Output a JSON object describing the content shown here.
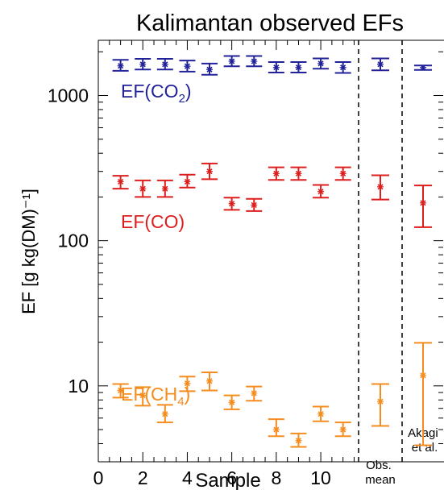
{
  "chart_data": {
    "type": "scatter",
    "title": "Kalimantan observed EFs",
    "xlabel": "Sample",
    "ylabel": "EF [g kg(DM)⁻¹]",
    "yscale": "log",
    "ylim": [
      3,
      2400
    ],
    "xlim": [
      0,
      11.7
    ],
    "xticks": [
      0,
      2,
      4,
      6,
      8,
      10
    ],
    "yticks": [
      10,
      100,
      1000
    ],
    "grid": false,
    "columns": [
      "Obs. mean",
      "Akagi et al."
    ],
    "series": [
      {
        "name": "EF(CO₂)",
        "label_parts": {
          "pre": "EF(CO",
          "sub": "2",
          "post": ")"
        },
        "color": "#22229a",
        "samples": [
          {
            "x": 1,
            "y": 1600,
            "lo": 1480,
            "hi": 1760
          },
          {
            "x": 2,
            "y": 1640,
            "lo": 1510,
            "hi": 1790
          },
          {
            "x": 3,
            "y": 1640,
            "lo": 1510,
            "hi": 1790
          },
          {
            "x": 4,
            "y": 1590,
            "lo": 1460,
            "hi": 1740
          },
          {
            "x": 5,
            "y": 1510,
            "lo": 1390,
            "hi": 1660
          },
          {
            "x": 6,
            "y": 1720,
            "lo": 1590,
            "hi": 1870
          },
          {
            "x": 7,
            "y": 1720,
            "lo": 1590,
            "hi": 1870
          },
          {
            "x": 8,
            "y": 1560,
            "lo": 1440,
            "hi": 1700
          },
          {
            "x": 9,
            "y": 1560,
            "lo": 1440,
            "hi": 1700
          },
          {
            "x": 10,
            "y": 1660,
            "lo": 1530,
            "hi": 1800
          },
          {
            "x": 11,
            "y": 1560,
            "lo": 1430,
            "hi": 1700
          }
        ],
        "obs_mean": {
          "y": 1640,
          "lo": 1490,
          "hi": 1800
        },
        "akagi": {
          "y": 1560,
          "lo": 1500,
          "hi": 1610
        }
      },
      {
        "name": "EF(CO)",
        "label_parts": {
          "pre": "EF(CO)",
          "sub": "",
          "post": ""
        },
        "color": "#dd1e1e",
        "samples": [
          {
            "x": 1,
            "y": 255,
            "lo": 228,
            "hi": 280
          },
          {
            "x": 2,
            "y": 228,
            "lo": 200,
            "hi": 260
          },
          {
            "x": 3,
            "y": 228,
            "lo": 200,
            "hi": 260
          },
          {
            "x": 4,
            "y": 255,
            "lo": 232,
            "hi": 285
          },
          {
            "x": 5,
            "y": 300,
            "lo": 265,
            "hi": 340
          },
          {
            "x": 6,
            "y": 180,
            "lo": 163,
            "hi": 198
          },
          {
            "x": 7,
            "y": 176,
            "lo": 160,
            "hi": 194
          },
          {
            "x": 8,
            "y": 290,
            "lo": 262,
            "hi": 320
          },
          {
            "x": 9,
            "y": 290,
            "lo": 262,
            "hi": 320
          },
          {
            "x": 10,
            "y": 218,
            "lo": 198,
            "hi": 242
          },
          {
            "x": 11,
            "y": 290,
            "lo": 262,
            "hi": 320
          }
        ],
        "obs_mean": {
          "y": 235,
          "lo": 192,
          "hi": 282
        },
        "akagi": {
          "y": 182,
          "lo": 124,
          "hi": 240
        }
      },
      {
        "name": "EF(CH₄)",
        "label_parts": {
          "pre": "EF(CH",
          "sub": "4",
          "post": ")"
        },
        "color": "#f58c1e",
        "samples": [
          {
            "x": 1,
            "y": 9.3,
            "lo": 8.3,
            "hi": 10.3
          },
          {
            "x": 2,
            "y": 8.6,
            "lo": 7.3,
            "hi": 9.8
          },
          {
            "x": 3,
            "y": 6.4,
            "lo": 5.6,
            "hi": 7.4
          },
          {
            "x": 4,
            "y": 10.4,
            "lo": 9.2,
            "hi": 11.6
          },
          {
            "x": 5,
            "y": 10.8,
            "lo": 9.3,
            "hi": 12.4
          },
          {
            "x": 6,
            "y": 7.7,
            "lo": 6.9,
            "hi": 8.6
          },
          {
            "x": 7,
            "y": 8.9,
            "lo": 7.9,
            "hi": 9.9
          },
          {
            "x": 8,
            "y": 5.0,
            "lo": 4.5,
            "hi": 5.9
          },
          {
            "x": 9,
            "y": 4.2,
            "lo": 3.8,
            "hi": 4.7
          },
          {
            "x": 10,
            "y": 6.4,
            "lo": 5.7,
            "hi": 7.2
          },
          {
            "x": 11,
            "y": 5.0,
            "lo": 4.5,
            "hi": 5.6
          }
        ],
        "obs_mean": {
          "y": 7.8,
          "lo": 5.3,
          "hi": 10.3
        },
        "akagi": {
          "y": 11.8,
          "lo": 3.9,
          "hi": 19.8
        }
      }
    ]
  }
}
